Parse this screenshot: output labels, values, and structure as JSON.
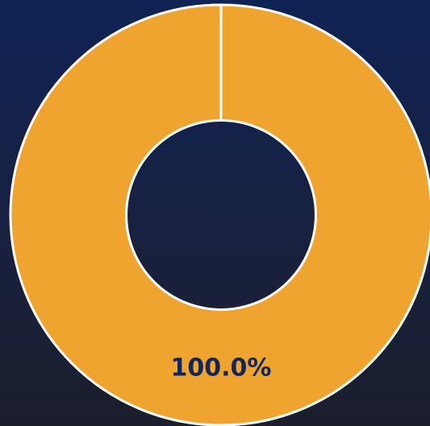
{
  "chart_data": {
    "type": "pie",
    "values": [
      100
    ],
    "value_labels": [
      "100.0%"
    ],
    "colors": [
      "#f0a430"
    ],
    "hole": 0.45
  }
}
